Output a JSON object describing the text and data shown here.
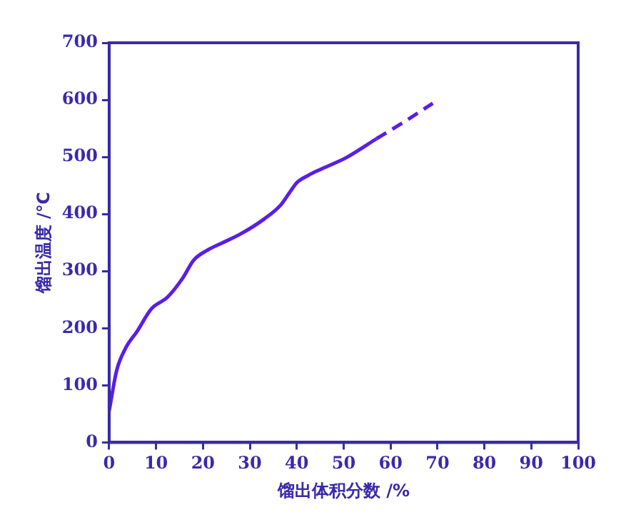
{
  "chart_data": {
    "type": "line",
    "xlabel": "馏出体积分数 /%",
    "ylabel": "馏出温度 /℃",
    "series": [
      {
        "color": "#5a1ee6",
        "line_style": "solid",
        "x": [
          0,
          1.6,
          3.5,
          6,
          9,
          12.4,
          15.7,
          18,
          21,
          24,
          28,
          33,
          36.6,
          38.5,
          40,
          42.5,
          45,
          50.6,
          57
        ],
        "values": [
          55,
          126,
          165,
          195,
          234,
          254,
          288,
          319,
          337,
          349,
          365,
          391,
          416,
          438,
          455,
          468,
          478,
          499,
          532
        ]
      },
      {
        "color": "#5a1ee6",
        "line_style": "dashed",
        "x": [
          57,
          63,
          69
        ],
        "values": [
          532,
          562,
          594
        ]
      }
    ],
    "xlim": [
      0,
      100
    ],
    "xticks": [
      0,
      10,
      20,
      30,
      40,
      50,
      60,
      70,
      80,
      90,
      100
    ],
    "ylim": [
      0,
      700
    ],
    "yticks": [
      0,
      100,
      200,
      300,
      400,
      500,
      600,
      700
    ],
    "grid": false,
    "legend": false,
    "marker": "none"
  }
}
